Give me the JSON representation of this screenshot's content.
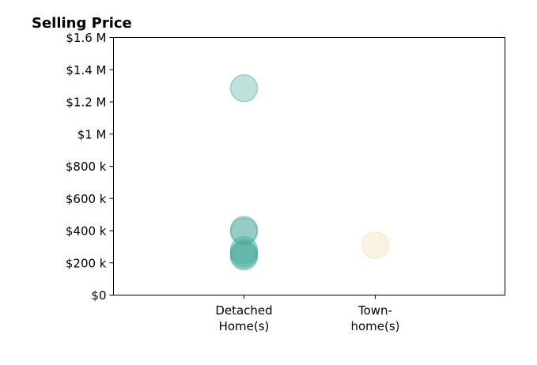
{
  "chart_data": {
    "type": "scatter",
    "title": "Selling Price",
    "xlabel": "",
    "ylabel": "",
    "categories": [
      {
        "line1": "Detached",
        "line2": "Home(s)"
      },
      {
        "line1": "Town-",
        "line2": "home(s)"
      }
    ],
    "y_ticks": [
      {
        "value": 0,
        "label": "$0"
      },
      {
        "value": 200000,
        "label": "$200 k"
      },
      {
        "value": 400000,
        "label": "$400 k"
      },
      {
        "value": 600000,
        "label": "$600 k"
      },
      {
        "value": 800000,
        "label": "$800 k"
      },
      {
        "value": 1000000,
        "label": "$1 M"
      },
      {
        "value": 1200000,
        "label": "$1.2 M"
      },
      {
        "value": 1400000,
        "label": "$1.4 M"
      },
      {
        "value": 1600000,
        "label": "$1.6 M"
      }
    ],
    "ylim": [
      0,
      1600000
    ],
    "grid": false,
    "series": [
      {
        "category_index": 0,
        "color": "#46a89a",
        "values": [
          1285000,
          405000,
          395000,
          280000,
          262000,
          250000,
          240000
        ]
      },
      {
        "category_index": 1,
        "color": "#f0dcaa",
        "values": [
          310000
        ]
      }
    ]
  }
}
